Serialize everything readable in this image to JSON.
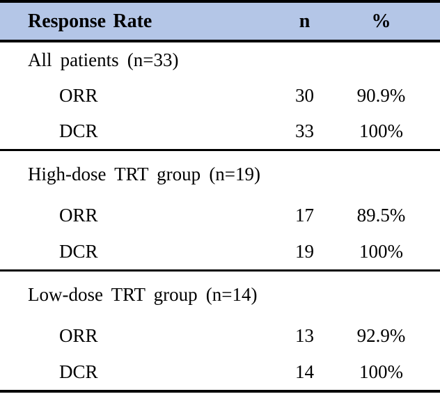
{
  "table": {
    "header": {
      "label": "Response Rate",
      "n": "n",
      "percent": "%"
    },
    "sections": [
      {
        "label": "All patients (n=33)",
        "rows": [
          {
            "measure": "ORR",
            "n": "30",
            "percent": "90.9%"
          },
          {
            "measure": "DCR",
            "n": "33",
            "percent": "100%"
          }
        ]
      },
      {
        "label": "High-dose TRT group (n=19)",
        "rows": [
          {
            "measure": "ORR",
            "n": "17",
            "percent": "89.5%"
          },
          {
            "measure": "DCR",
            "n": "19",
            "percent": "100%"
          }
        ]
      },
      {
        "label": "Low-dose TRT group (n=14)",
        "rows": [
          {
            "measure": "ORR",
            "n": "13",
            "percent": "92.9%"
          },
          {
            "measure": "DCR",
            "n": "14",
            "percent": "100%"
          }
        ]
      }
    ]
  },
  "colors": {
    "header_bg": "#b4c6e7",
    "border": "#000000",
    "text": "#000000"
  },
  "chart_data": {
    "type": "table",
    "title": "Response Rate",
    "columns": [
      "Response Rate",
      "n",
      "%"
    ],
    "rows": [
      [
        "All patients (n=33)",
        null,
        null
      ],
      [
        "ORR",
        30,
        "90.9%"
      ],
      [
        "DCR",
        33,
        "100%"
      ],
      [
        "High-dose TRT group (n=19)",
        null,
        null
      ],
      [
        "ORR",
        17,
        "89.5%"
      ],
      [
        "DCR",
        19,
        "100%"
      ],
      [
        "Low-dose TRT group (n=14)",
        null,
        null
      ],
      [
        "ORR",
        13,
        "92.9%"
      ],
      [
        "DCR",
        14,
        "100%"
      ]
    ]
  }
}
